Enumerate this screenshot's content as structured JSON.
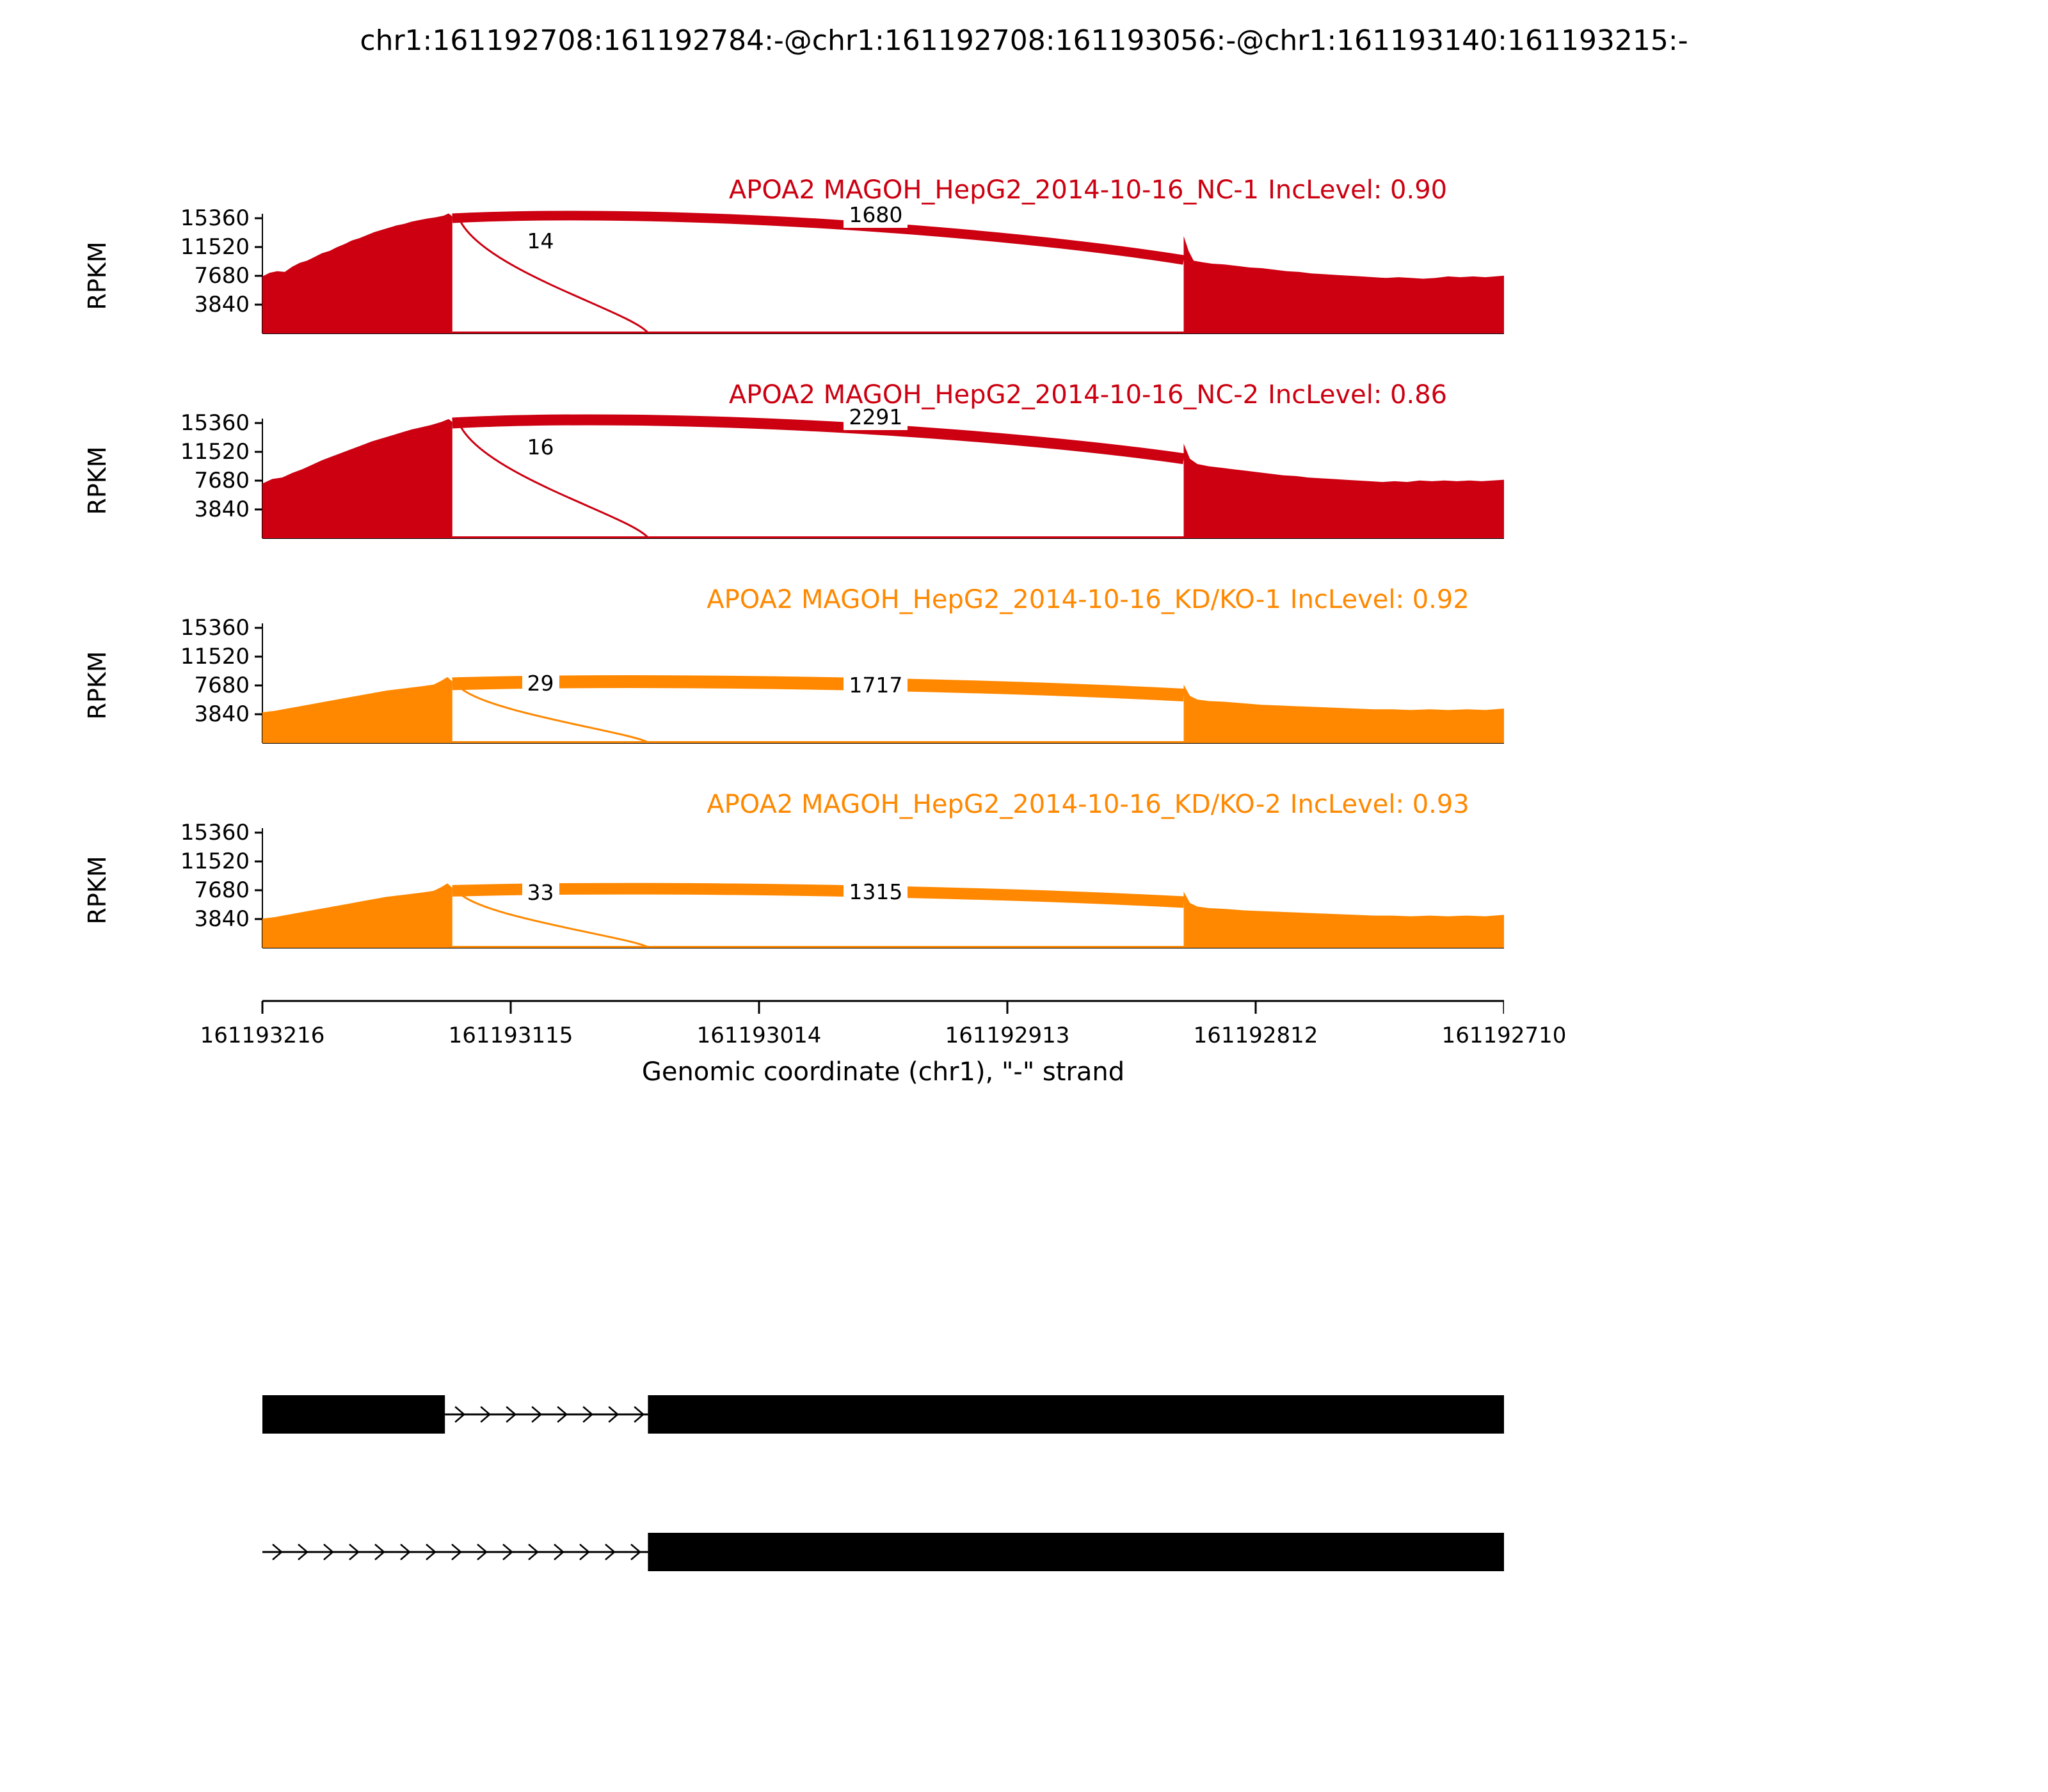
{
  "title": "chr1:161192708:161192784:-@chr1:161192708:161193056:-@chr1:161193140:161193215:-",
  "y_axis": {
    "label": "RPKM",
    "ticks": [
      "15360",
      "11520",
      "7680",
      "3840"
    ]
  },
  "x_axis": {
    "label": "Genomic coordinate (chr1), \"-\" strand",
    "ticks": [
      "161193216",
      "161193115",
      "161193014",
      "161192913",
      "161192812",
      "161192710"
    ]
  },
  "colors": {
    "nc": "#CC0011",
    "kd_ko": "#FF8800",
    "gene_model": "#000000",
    "background": "#ffffff"
  },
  "chart_data": {
    "type": "area",
    "title": "rMATS sashimi plot: RNA-seq coverage (RPKM) with splice junction read counts",
    "ylim": [
      0,
      17000
    ],
    "tracks": [
      {
        "label": "APOA2 MAGOH_HepG2_2014-10-16_NC-1",
        "inc_label": "IncLevel: 0.90",
        "color": "#CC0011",
        "junctions": [
          {
            "role": "skip",
            "count": "14",
            "x1": 0.16,
            "v1": 14800,
            "x2": 0.3105,
            "v2": 0,
            "stroke": 3,
            "label_x": 0.224,
            "label_v": 12300
          },
          {
            "role": "main",
            "count": "1680",
            "x1": 0.153,
            "v1": 15360,
            "x2": 0.742,
            "v2": 9800,
            "apex": 16800,
            "stroke": 15,
            "label_x": 0.494,
            "label_v": 15800
          }
        ],
        "profile_left": [
          [
            0,
            7600
          ],
          [
            0.006,
            8100
          ],
          [
            0.012,
            8300
          ],
          [
            0.018,
            8200
          ],
          [
            0.024,
            8900
          ],
          [
            0.03,
            9400
          ],
          [
            0.036,
            9700
          ],
          [
            0.042,
            10200
          ],
          [
            0.048,
            10700
          ],
          [
            0.054,
            11000
          ],
          [
            0.06,
            11500
          ],
          [
            0.066,
            11900
          ],
          [
            0.072,
            12400
          ],
          [
            0.078,
            12700
          ],
          [
            0.084,
            13100
          ],
          [
            0.09,
            13500
          ],
          [
            0.096,
            13800
          ],
          [
            0.102,
            14100
          ],
          [
            0.108,
            14400
          ],
          [
            0.114,
            14600
          ],
          [
            0.12,
            14900
          ],
          [
            0.126,
            15100
          ],
          [
            0.132,
            15300
          ],
          [
            0.14,
            15500
          ],
          [
            0.146,
            15700
          ],
          [
            0.15,
            16000
          ],
          [
            0.153,
            15600
          ]
        ],
        "profile_right": [
          [
            0.742,
            13000
          ],
          [
            0.746,
            11000
          ],
          [
            0.75,
            9700
          ],
          [
            0.757,
            9500
          ],
          [
            0.765,
            9300
          ],
          [
            0.775,
            9200
          ],
          [
            0.785,
            9000
          ],
          [
            0.795,
            8800
          ],
          [
            0.805,
            8700
          ],
          [
            0.815,
            8500
          ],
          [
            0.825,
            8300
          ],
          [
            0.835,
            8200
          ],
          [
            0.845,
            8000
          ],
          [
            0.855,
            7900
          ],
          [
            0.865,
            7800
          ],
          [
            0.875,
            7700
          ],
          [
            0.885,
            7600
          ],
          [
            0.895,
            7500
          ],
          [
            0.905,
            7400
          ],
          [
            0.915,
            7500
          ],
          [
            0.925,
            7400
          ],
          [
            0.935,
            7300
          ],
          [
            0.945,
            7400
          ],
          [
            0.955,
            7600
          ],
          [
            0.965,
            7500
          ],
          [
            0.975,
            7600
          ],
          [
            0.985,
            7500
          ],
          [
            1.0,
            7700
          ]
        ]
      },
      {
        "label": "APOA2 MAGOH_HepG2_2014-10-16_NC-2",
        "inc_label": "IncLevel: 0.86",
        "color": "#CC0011",
        "junctions": [
          {
            "role": "skip",
            "count": "16",
            "x1": 0.16,
            "v1": 14800,
            "x2": 0.3105,
            "v2": 0,
            "stroke": 3,
            "label_x": 0.224,
            "label_v": 12100
          },
          {
            "role": "main",
            "count": "2291",
            "x1": 0.153,
            "v1": 15360,
            "x2": 0.742,
            "v2": 10600,
            "apex": 16900,
            "stroke": 17,
            "label_x": 0.494,
            "label_v": 16100
          }
        ],
        "profile_left": [
          [
            0,
            7300
          ],
          [
            0.008,
            7900
          ],
          [
            0.016,
            8100
          ],
          [
            0.024,
            8700
          ],
          [
            0.032,
            9200
          ],
          [
            0.04,
            9800
          ],
          [
            0.048,
            10400
          ],
          [
            0.056,
            10900
          ],
          [
            0.064,
            11400
          ],
          [
            0.072,
            11900
          ],
          [
            0.08,
            12400
          ],
          [
            0.088,
            12900
          ],
          [
            0.096,
            13300
          ],
          [
            0.104,
            13700
          ],
          [
            0.112,
            14100
          ],
          [
            0.12,
            14500
          ],
          [
            0.128,
            14800
          ],
          [
            0.136,
            15100
          ],
          [
            0.144,
            15500
          ],
          [
            0.15,
            15900
          ],
          [
            0.153,
            15500
          ]
        ],
        "profile_right": [
          [
            0.742,
            12600
          ],
          [
            0.747,
            10600
          ],
          [
            0.753,
            9900
          ],
          [
            0.762,
            9600
          ],
          [
            0.772,
            9400
          ],
          [
            0.782,
            9200
          ],
          [
            0.792,
            9000
          ],
          [
            0.802,
            8800
          ],
          [
            0.812,
            8600
          ],
          [
            0.822,
            8400
          ],
          [
            0.832,
            8300
          ],
          [
            0.842,
            8100
          ],
          [
            0.852,
            8000
          ],
          [
            0.862,
            7900
          ],
          [
            0.872,
            7800
          ],
          [
            0.882,
            7700
          ],
          [
            0.892,
            7600
          ],
          [
            0.902,
            7500
          ],
          [
            0.912,
            7600
          ],
          [
            0.922,
            7500
          ],
          [
            0.932,
            7700
          ],
          [
            0.942,
            7600
          ],
          [
            0.952,
            7700
          ],
          [
            0.962,
            7600
          ],
          [
            0.972,
            7700
          ],
          [
            0.982,
            7600
          ],
          [
            1.0,
            7800
          ]
        ]
      },
      {
        "label": "APOA2 MAGOH_HepG2_2014-10-16_KD/KO-1",
        "inc_label": "IncLevel: 0.92",
        "color": "#FF8800",
        "junctions": [
          {
            "role": "skip",
            "count": "29",
            "x1": 0.16,
            "v1": 7300,
            "x2": 0.3105,
            "v2": 0,
            "stroke": 3,
            "label_x": 0.224,
            "label_v": 7900
          },
          {
            "role": "main",
            "count": "1717",
            "x1": 0.153,
            "v1": 7900,
            "x2": 0.742,
            "v2": 6400,
            "apex": 8700,
            "stroke": 20,
            "label_x": 0.494,
            "label_v": 7700
          }
        ],
        "profile_left": [
          [
            0,
            4100
          ],
          [
            0.01,
            4300
          ],
          [
            0.02,
            4600
          ],
          [
            0.03,
            4900
          ],
          [
            0.04,
            5200
          ],
          [
            0.05,
            5500
          ],
          [
            0.06,
            5800
          ],
          [
            0.07,
            6100
          ],
          [
            0.08,
            6400
          ],
          [
            0.09,
            6700
          ],
          [
            0.1,
            7000
          ],
          [
            0.11,
            7200
          ],
          [
            0.12,
            7400
          ],
          [
            0.13,
            7600
          ],
          [
            0.138,
            7800
          ],
          [
            0.144,
            8300
          ],
          [
            0.149,
            8800
          ],
          [
            0.153,
            8200
          ]
        ],
        "profile_right": [
          [
            0.742,
            7800
          ],
          [
            0.747,
            6300
          ],
          [
            0.753,
            5800
          ],
          [
            0.762,
            5600
          ],
          [
            0.775,
            5500
          ],
          [
            0.79,
            5300
          ],
          [
            0.805,
            5100
          ],
          [
            0.82,
            5000
          ],
          [
            0.835,
            4900
          ],
          [
            0.85,
            4800
          ],
          [
            0.865,
            4700
          ],
          [
            0.88,
            4600
          ],
          [
            0.895,
            4500
          ],
          [
            0.91,
            4500
          ],
          [
            0.925,
            4400
          ],
          [
            0.94,
            4500
          ],
          [
            0.955,
            4400
          ],
          [
            0.97,
            4500
          ],
          [
            0.985,
            4400
          ],
          [
            1.0,
            4600
          ]
        ]
      },
      {
        "label": "APOA2 MAGOH_HepG2_2014-10-16_KD/KO-2",
        "inc_label": "IncLevel: 0.93",
        "color": "#FF8800",
        "junctions": [
          {
            "role": "skip",
            "count": "33",
            "x1": 0.16,
            "v1": 7100,
            "x2": 0.3105,
            "v2": 0,
            "stroke": 3,
            "label_x": 0.224,
            "label_v": 7300
          },
          {
            "role": "main",
            "count": "1315",
            "x1": 0.153,
            "v1": 7600,
            "x2": 0.742,
            "v2": 6100,
            "apex": 8400,
            "stroke": 18,
            "label_x": 0.494,
            "label_v": 7400
          }
        ],
        "profile_left": [
          [
            0,
            3900
          ],
          [
            0.01,
            4100
          ],
          [
            0.02,
            4400
          ],
          [
            0.03,
            4700
          ],
          [
            0.04,
            5000
          ],
          [
            0.05,
            5300
          ],
          [
            0.06,
            5600
          ],
          [
            0.07,
            5900
          ],
          [
            0.08,
            6200
          ],
          [
            0.09,
            6500
          ],
          [
            0.1,
            6800
          ],
          [
            0.11,
            7000
          ],
          [
            0.12,
            7200
          ],
          [
            0.13,
            7400
          ],
          [
            0.138,
            7600
          ],
          [
            0.144,
            8100
          ],
          [
            0.149,
            8600
          ],
          [
            0.153,
            8000
          ]
        ],
        "profile_right": [
          [
            0.742,
            7500
          ],
          [
            0.747,
            6000
          ],
          [
            0.753,
            5500
          ],
          [
            0.762,
            5300
          ],
          [
            0.775,
            5200
          ],
          [
            0.79,
            5000
          ],
          [
            0.805,
            4900
          ],
          [
            0.82,
            4800
          ],
          [
            0.835,
            4700
          ],
          [
            0.85,
            4600
          ],
          [
            0.865,
            4500
          ],
          [
            0.88,
            4400
          ],
          [
            0.895,
            4300
          ],
          [
            0.91,
            4300
          ],
          [
            0.925,
            4200
          ],
          [
            0.94,
            4300
          ],
          [
            0.955,
            4200
          ],
          [
            0.97,
            4300
          ],
          [
            0.985,
            4200
          ],
          [
            1.0,
            4400
          ]
        ]
      }
    ]
  },
  "gene_diagram": {
    "isoforms": [
      {
        "name": "isoform-inclusion",
        "exons": [
          [
            0.0,
            0.147
          ],
          [
            0.3105,
            1.0
          ]
        ],
        "arrow_segments": [
          [
            0.147,
            0.3105
          ]
        ]
      },
      {
        "name": "isoform-skipping",
        "exons": [
          [
            0.3105,
            1.0
          ]
        ],
        "arrow_segments": [
          [
            0.0,
            0.3105
          ]
        ]
      }
    ]
  }
}
